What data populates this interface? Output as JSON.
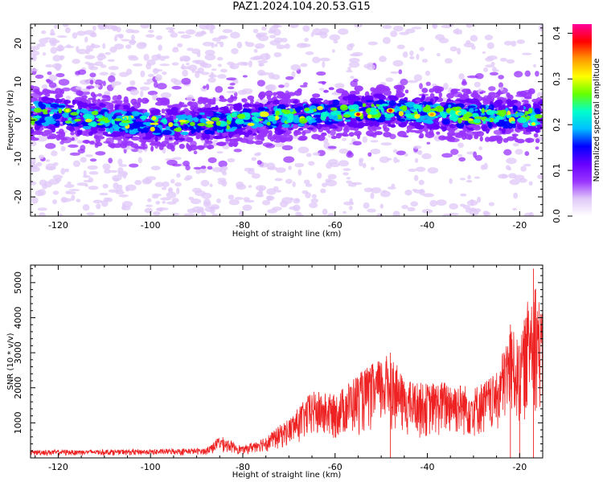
{
  "title": "PAZ1.2024.104.20.53.G15",
  "chart_data": [
    {
      "type": "heatmap",
      "title": "PAZ1.2024.104.20.53.G15",
      "xlabel": "Height of straight line (km)",
      "ylabel": "Frequency (Hz)",
      "xlim": [
        -126,
        -15
      ],
      "ylim": [
        -25,
        25
      ],
      "xticks": [
        -120,
        -100,
        -80,
        -60,
        -40,
        -20
      ],
      "yticks": [
        -20,
        -10,
        0,
        10,
        20
      ],
      "colorbar": {
        "label": "Normalized spectral amplitude",
        "range": [
          0.0,
          0.42
        ],
        "ticks": [
          0.0,
          0.1,
          0.2,
          0.3,
          0.4
        ],
        "colormap": [
          "#ffffff",
          "#e0c8f8",
          "#9933ff",
          "#6600ff",
          "#0000ff",
          "#00bfff",
          "#00ffcc",
          "#66ff00",
          "#ffff00",
          "#ff9900",
          "#ff0000",
          "#ff0099"
        ]
      },
      "band_center_hz": [
        {
          "x": -125,
          "y": 2
        },
        {
          "x": -110,
          "y": 0
        },
        {
          "x": -100,
          "y": -1
        },
        {
          "x": -90,
          "y": -1
        },
        {
          "x": -80,
          "y": 0
        },
        {
          "x": -70,
          "y": 1
        },
        {
          "x": -60,
          "y": 2
        },
        {
          "x": -50,
          "y": 2.5
        },
        {
          "x": -40,
          "y": 2
        },
        {
          "x": -30,
          "y": 1
        },
        {
          "x": -20,
          "y": 1
        },
        {
          "x": -15,
          "y": 1
        }
      ],
      "peaks": [
        {
          "x": -118,
          "y": 2.5,
          "value": 0.32
        },
        {
          "x": -55,
          "y": 1.5,
          "value": 0.38
        },
        {
          "x": -48,
          "y": 2.5,
          "value": 0.4
        },
        {
          "x": -39,
          "y": 1.5,
          "value": 0.36
        },
        {
          "x": -17,
          "y": -1,
          "value": 0.3
        }
      ]
    },
    {
      "type": "line",
      "xlabel": "Height of straight line (km)",
      "ylabel": "SNR (10 * v/v)",
      "xlim": [
        -126,
        -15
      ],
      "ylim": [
        0,
        5500
      ],
      "xticks": [
        -120,
        -100,
        -80,
        -60,
        -40,
        -20
      ],
      "yticks": [
        1000,
        2000,
        3000,
        4000,
        5000
      ],
      "line_color": "#ee2222",
      "envelope": [
        {
          "x": -126,
          "y": 200
        },
        {
          "x": -100,
          "y": 220
        },
        {
          "x": -88,
          "y": 250
        },
        {
          "x": -85,
          "y": 600
        },
        {
          "x": -80,
          "y": 300
        },
        {
          "x": -75,
          "y": 600
        },
        {
          "x": -70,
          "y": 1100
        },
        {
          "x": -65,
          "y": 1900
        },
        {
          "x": -60,
          "y": 1800
        },
        {
          "x": -55,
          "y": 2400
        },
        {
          "x": -48,
          "y": 3000
        },
        {
          "x": -45,
          "y": 2200
        },
        {
          "x": -40,
          "y": 2100
        },
        {
          "x": -35,
          "y": 2200
        },
        {
          "x": -30,
          "y": 2000
        },
        {
          "x": -25,
          "y": 2400
        },
        {
          "x": -22,
          "y": 3800
        },
        {
          "x": -20,
          "y": 3200
        },
        {
          "x": -17,
          "y": 5400
        },
        {
          "x": -15,
          "y": 4000
        }
      ]
    }
  ]
}
